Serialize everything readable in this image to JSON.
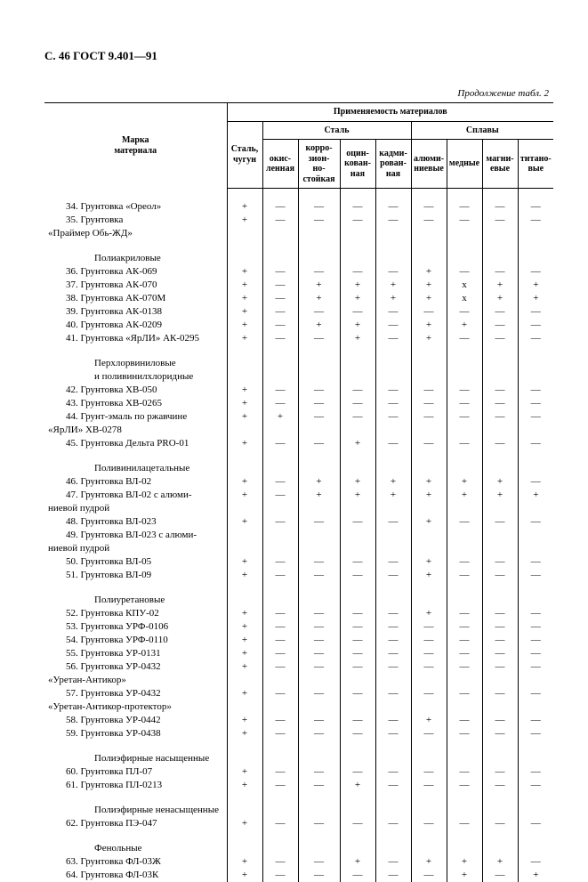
{
  "running_head": "С. 46 ГОСТ 9.401—91",
  "continuation": "Продолжение табл. 2",
  "header": {
    "material_label": "Марка\nматериала",
    "applicability": "Применяемость материалов",
    "steel_group": "Сталь",
    "alloys_group": "Сплавы",
    "col_steel_chugun": "Сталь,\nчугун",
    "col_okis": "окис-\nленная",
    "col_korr": "корро-\nзион-\nно-\nстойкая",
    "col_ocin": "оцин-\nкован-\nная",
    "col_kadm": "кадми-\nрован-\nная",
    "col_alum": "алюми-\nниевые",
    "col_med": "медные",
    "col_magn": "магни-\nевые",
    "col_titan": "титано-\nвые"
  },
  "sections": [
    {
      "rows": [
        {
          "name": "34. Грунтовка «Ореол»",
          "v": [
            "+",
            "—",
            "—",
            "—",
            "—",
            "—",
            "—",
            "—",
            "—"
          ]
        },
        {
          "name": "35. Грунтовка",
          "cont": "«Праймер Обь-ЖД»",
          "v": [
            "+",
            "—",
            "—",
            "—",
            "—",
            "—",
            "—",
            "—",
            "—"
          ]
        }
      ]
    },
    {
      "title": "Полиакриловые",
      "rows": [
        {
          "name": "36. Грунтовка АК-069",
          "v": [
            "+",
            "—",
            "—",
            "—",
            "—",
            "+",
            "—",
            "—",
            "—"
          ]
        },
        {
          "name": "37. Грунтовка АК-070",
          "v": [
            "+",
            "—",
            "+",
            "+",
            "+",
            "+",
            "х",
            "+",
            "+"
          ]
        },
        {
          "name": "38. Грунтовка АК-070М",
          "v": [
            "+",
            "—",
            "+",
            "+",
            "+",
            "+",
            "х",
            "+",
            "+"
          ]
        },
        {
          "name": "39. Грунтовка АК-0138",
          "v": [
            "+",
            "—",
            "—",
            "—",
            "—",
            "—",
            "—",
            "—",
            "—"
          ]
        },
        {
          "name": "40. Грунтовка АК-0209",
          "v": [
            "+",
            "—",
            "+",
            "+",
            "—",
            "+",
            "+",
            "—",
            "—"
          ]
        },
        {
          "name": "41. Грунтовка «ЯрЛИ» АК-0295",
          "v": [
            "+",
            "—",
            "—",
            "+",
            "—",
            "+",
            "—",
            "—",
            "—"
          ]
        }
      ]
    },
    {
      "title": "Перхлорвиниловые",
      "title2": "и поливинилхлоридные",
      "rows": [
        {
          "name": "42. Грунтовка ХВ-050",
          "v": [
            "+",
            "—",
            "—",
            "—",
            "—",
            "—",
            "—",
            "—",
            "—"
          ]
        },
        {
          "name": "43. Грунтовка ХВ-0265",
          "v": [
            "+",
            "—",
            "—",
            "—",
            "—",
            "—",
            "—",
            "—",
            "—"
          ]
        },
        {
          "name": "44. Грунт-эмаль по ржавчине",
          "cont": "«ЯрЛИ» ХВ-0278",
          "v": [
            "+",
            "+",
            "—",
            "—",
            "—",
            "—",
            "—",
            "—",
            "—"
          ]
        },
        {
          "name": "45. Грунтовка Дельта PRO-01",
          "v": [
            "+",
            "—",
            "—",
            "+",
            "—",
            "—",
            "—",
            "—",
            "—"
          ]
        }
      ]
    },
    {
      "title": "Поливинилацетальные",
      "rows": [
        {
          "name": "46. Грунтовка ВЛ-02",
          "v": [
            "+",
            "—",
            "+",
            "+",
            "+",
            "+",
            "+",
            "+",
            "—"
          ]
        },
        {
          "name": "47. Грунтовка ВЛ-02 с алюми-",
          "cont": "ниевой пудрой",
          "v": [
            "+",
            "—",
            "+",
            "+",
            "+",
            "+",
            "+",
            "+",
            "+"
          ]
        },
        {
          "name": "48. Грунтовка ВЛ-023",
          "v": [
            "+",
            "—",
            "—",
            "—",
            "—",
            "+",
            "—",
            "—",
            "—"
          ]
        },
        {
          "name": "49. Грунтовка ВЛ-023 с алюми-",
          "cont": "ниевой пудрой",
          "v": [
            "",
            "",
            "",
            "",
            "",
            "",
            "",
            "",
            ""
          ]
        },
        {
          "name": "50. Грунтовка ВЛ-05",
          "v": [
            "+",
            "—",
            "—",
            "—",
            "—",
            "+",
            "—",
            "—",
            "—"
          ]
        },
        {
          "name": "51. Грунтовка ВЛ-09",
          "v": [
            "+",
            "—",
            "—",
            "—",
            "—",
            "+",
            "—",
            "—",
            "—"
          ]
        }
      ]
    },
    {
      "title": "Полиуретановые",
      "rows": [
        {
          "name": "52. Грунтовка КПУ-02",
          "v": [
            "+",
            "—",
            "—",
            "—",
            "—",
            "+",
            "—",
            "—",
            "—"
          ]
        },
        {
          "name": "53. Грунтовка УРФ-0106",
          "v": [
            "+",
            "—",
            "—",
            "—",
            "—",
            "—",
            "—",
            "—",
            "—"
          ]
        },
        {
          "name": "54. Грунтовка УРФ-0110",
          "v": [
            "+",
            "—",
            "—",
            "—",
            "—",
            "—",
            "—",
            "—",
            "—"
          ]
        },
        {
          "name": "55. Грунтовка УР-0131",
          "v": [
            "+",
            "—",
            "—",
            "—",
            "—",
            "—",
            "—",
            "—",
            "—"
          ]
        },
        {
          "name": "56. Грунтовка УР-0432",
          "cont": "«Уретан-Антикор»",
          "v": [
            "+",
            "—",
            "—",
            "—",
            "—",
            "—",
            "—",
            "—",
            "—"
          ]
        },
        {
          "name": "57. Грунтовка УР-0432",
          "cont": "«Уретан-Антикор-протектор»",
          "v": [
            "+",
            "—",
            "—",
            "—",
            "—",
            "—",
            "—",
            "—",
            "—"
          ]
        },
        {
          "name": "58. Грунтовка УР-0442",
          "v": [
            "+",
            "—",
            "—",
            "—",
            "—",
            "+",
            "—",
            "—",
            "—"
          ]
        },
        {
          "name": "59. Грунтовка УР-0438",
          "v": [
            "+",
            "—",
            "—",
            "—",
            "—",
            "—",
            "—",
            "—",
            "—"
          ]
        }
      ]
    },
    {
      "title": "Полиэфирные насыщенные",
      "rows": [
        {
          "name": "60. Грунтовка ПЛ-07",
          "v": [
            "+",
            "—",
            "—",
            "—",
            "—",
            "—",
            "—",
            "—",
            "—"
          ]
        },
        {
          "name": "61. Грунтовка ПЛ-0213",
          "v": [
            "+",
            "—",
            "—",
            "+",
            "—",
            "—",
            "—",
            "—",
            "—"
          ]
        }
      ]
    },
    {
      "title": "Полиэфирные ненасыщенные",
      "rows": [
        {
          "name": "62. Грунтовка ПЭ-047",
          "v": [
            "+",
            "—",
            "—",
            "—",
            "—",
            "—",
            "—",
            "—",
            "—"
          ]
        }
      ]
    },
    {
      "title": "Фенольные",
      "rows": [
        {
          "name": "63. Грунтовка ФЛ-03Ж",
          "v": [
            "+",
            "—",
            "—",
            "+",
            "—",
            "+",
            "+",
            "+",
            "—"
          ]
        },
        {
          "name": "64. Грунтовка ФЛ-03К",
          "v": [
            "+",
            "—",
            "—",
            "—",
            "—",
            "—",
            "+",
            "—",
            "+"
          ]
        }
      ]
    }
  ]
}
